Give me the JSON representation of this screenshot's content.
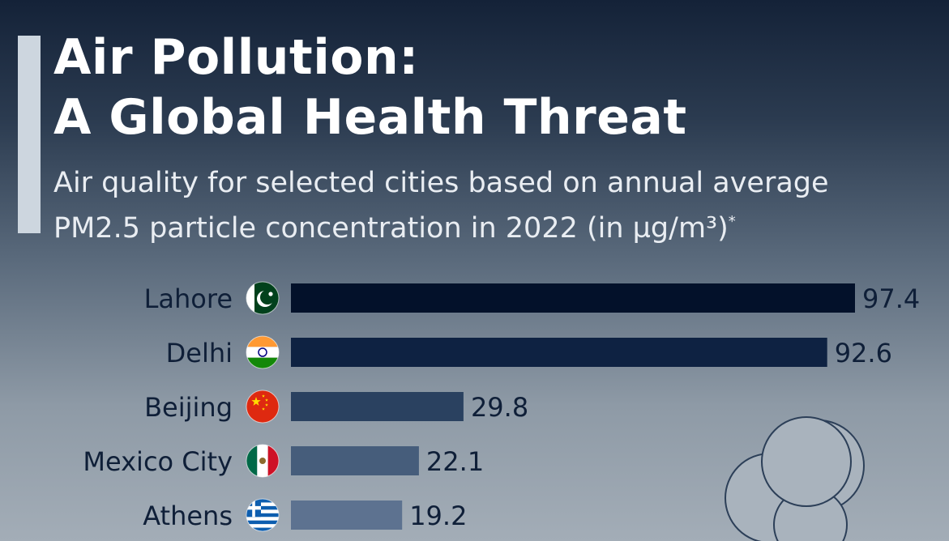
{
  "title_line1": "Air Pollution:",
  "title_line2": "A Global Health Threat",
  "subtitle_line1": "Air quality for selected cities based on annual average",
  "subtitle_line2": "PM2.5 particle concentration in 2022 (in µg/m³)",
  "subtitle_mark": "*",
  "chart_data": {
    "type": "bar",
    "orientation": "horizontal",
    "categories": [
      "Lahore",
      "Delhi",
      "Beijing",
      "Mexico City",
      "Athens"
    ],
    "values": [
      97.4,
      92.6,
      29.8,
      22.1,
      19.2
    ],
    "value_labels": [
      "97.4",
      "92.6",
      "29.8",
      "22.1",
      "19.2"
    ],
    "flags": [
      "pakistan-flag",
      "india-flag",
      "china-flag",
      "mexico-flag",
      "greece-flag"
    ],
    "bar_colors": [
      "#03112a",
      "#0e2242",
      "#2a4160",
      "#465d7b",
      "#5d7290"
    ],
    "xlim": [
      0,
      97.4
    ],
    "grid": false,
    "legend": "none"
  }
}
